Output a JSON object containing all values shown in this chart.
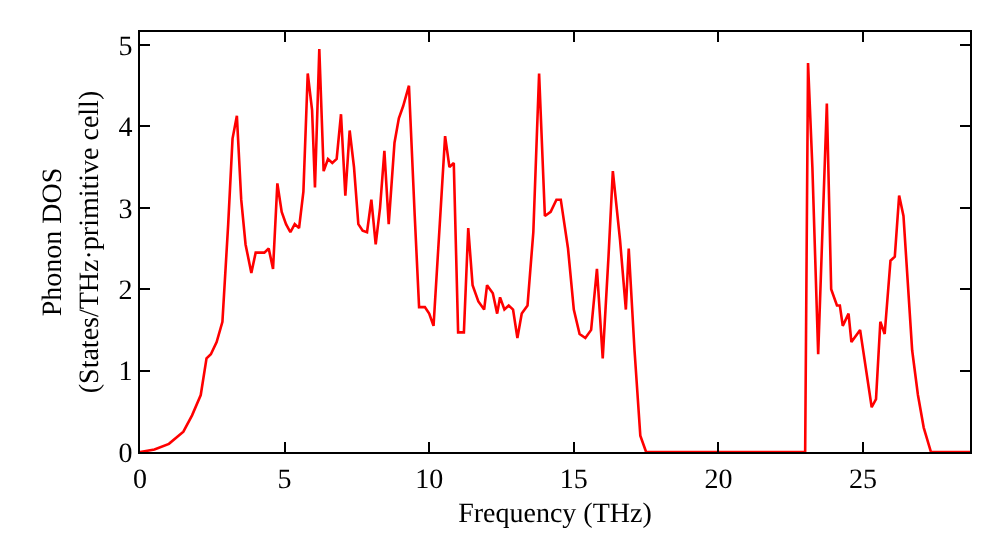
{
  "chart_data": {
    "type": "line",
    "xlabel": "Frequency (THz)",
    "ylabel": "Phonon DOS\n(States/THz·primitive cell)",
    "xlim": [
      0,
      28.7
    ],
    "ylim": [
      0,
      5.16
    ],
    "xticks": [
      0,
      5,
      10,
      15,
      20,
      25
    ],
    "yticks": [
      0,
      1,
      2,
      3,
      4,
      5
    ],
    "marker": "none",
    "line_style": "solid",
    "series": [
      {
        "color": "#ff0000",
        "x": [
          0,
          0.5,
          1.0,
          1.5,
          1.8,
          2.1,
          2.3,
          2.45,
          2.65,
          2.85,
          3.05,
          3.2,
          3.35,
          3.5,
          3.65,
          3.85,
          4.0,
          4.15,
          4.3,
          4.45,
          4.6,
          4.75,
          4.9,
          5.05,
          5.2,
          5.35,
          5.5,
          5.65,
          5.8,
          5.95,
          6.05,
          6.2,
          6.35,
          6.5,
          6.65,
          6.8,
          6.95,
          7.1,
          7.25,
          7.4,
          7.55,
          7.7,
          7.85,
          8.0,
          8.15,
          8.3,
          8.45,
          8.6,
          8.8,
          8.95,
          9.1,
          9.3,
          9.5,
          9.65,
          9.85,
          10.0,
          10.15,
          10.4,
          10.55,
          10.7,
          10.85,
          11.0,
          11.2,
          11.35,
          11.5,
          11.7,
          11.9,
          12.0,
          12.2,
          12.35,
          12.45,
          12.6,
          12.75,
          12.9,
          13.05,
          13.2,
          13.4,
          13.6,
          13.8,
          14.0,
          14.2,
          14.4,
          14.55,
          14.8,
          15.0,
          15.2,
          15.4,
          15.6,
          15.8,
          16.0,
          16.2,
          16.35,
          16.6,
          16.8,
          16.9,
          17.1,
          17.3,
          17.5,
          23.0,
          23.1,
          23.25,
          23.45,
          23.75,
          23.9,
          24.1,
          24.2,
          24.3,
          24.5,
          24.6,
          24.9,
          25.3,
          25.45,
          25.6,
          25.75,
          25.95,
          26.1,
          26.25,
          26.4,
          26.7,
          26.9,
          27.1,
          27.35,
          28.7
        ],
        "values": [
          0,
          0.03,
          0.1,
          0.25,
          0.45,
          0.7,
          1.15,
          1.2,
          1.35,
          1.6,
          2.8,
          3.85,
          4.13,
          3.1,
          2.55,
          2.2,
          2.45,
          2.45,
          2.45,
          2.5,
          2.25,
          3.3,
          2.95,
          2.8,
          2.7,
          2.8,
          2.75,
          3.2,
          4.65,
          4.2,
          3.25,
          4.95,
          3.45,
          3.6,
          3.55,
          3.6,
          4.15,
          3.15,
          3.95,
          3.5,
          2.8,
          2.72,
          2.7,
          3.1,
          2.55,
          3.0,
          3.7,
          2.8,
          3.8,
          4.1,
          4.25,
          4.5,
          2.9,
          1.78,
          1.78,
          1.7,
          1.55,
          3.0,
          3.88,
          3.5,
          3.55,
          1.47,
          1.47,
          2.75,
          2.05,
          1.85,
          1.75,
          2.05,
          1.95,
          1.7,
          1.9,
          1.75,
          1.8,
          1.75,
          1.4,
          1.7,
          1.8,
          2.7,
          4.65,
          2.9,
          2.95,
          3.1,
          3.1,
          2.5,
          1.75,
          1.45,
          1.4,
          1.5,
          2.25,
          1.15,
          2.4,
          3.45,
          2.6,
          1.75,
          2.5,
          1.25,
          0.2,
          0,
          0,
          4.78,
          3.5,
          1.2,
          4.28,
          2.0,
          1.8,
          1.8,
          1.55,
          1.7,
          1.35,
          1.5,
          0.55,
          0.65,
          1.6,
          1.45,
          2.35,
          2.4,
          3.15,
          2.9,
          1.25,
          0.7,
          0.3,
          0,
          0
        ]
      }
    ]
  }
}
